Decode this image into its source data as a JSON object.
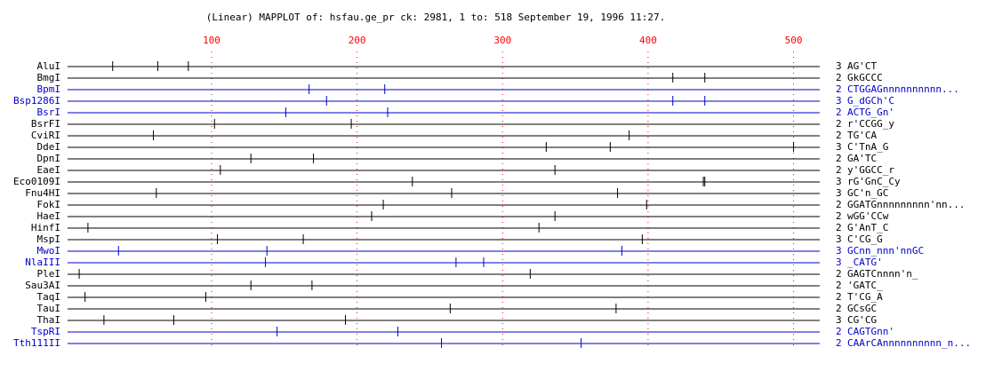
{
  "chart_data": {
    "type": "restriction-map",
    "title": "(Linear) MAPPLOT of: hsfau.ge_pr  ck: 2981, 1 to: 518  September 19, 1996 11:27.",
    "xlim": [
      1,
      518
    ],
    "xticks": [
      100,
      200,
      300,
      400,
      500
    ],
    "tick_color": "#ff0000",
    "series": [
      {
        "name": "AluI",
        "color": "#000000",
        "count": 3,
        "site": "AG'CT",
        "values": [
          32,
          63,
          84
        ]
      },
      {
        "name": "BmgI",
        "color": "#000000",
        "count": 2,
        "site": "GkGCCC",
        "values": [
          417,
          439
        ]
      },
      {
        "name": "BpmI",
        "color": "#0000cc",
        "count": 2,
        "site": "CTGGAGnnnnnnnnnn...",
        "values": [
          167,
          219
        ]
      },
      {
        "name": "Bsp1286I",
        "color": "#0000cc",
        "count": 3,
        "site": "G_dGCh'C",
        "values": [
          179,
          417,
          439
        ]
      },
      {
        "name": "BsrI",
        "color": "#0000cc",
        "count": 2,
        "site": "ACTG_Gn'",
        "values": [
          151,
          221
        ]
      },
      {
        "name": "BsrFI",
        "color": "#000000",
        "count": 2,
        "site": "r'CCGG_y",
        "values": [
          102,
          196
        ]
      },
      {
        "name": "CviRI",
        "color": "#000000",
        "count": 2,
        "site": "TG'CA",
        "values": [
          60,
          387
        ]
      },
      {
        "name": "DdeI",
        "color": "#000000",
        "count": 3,
        "site": "C'TnA_G",
        "values": [
          330,
          374,
          500
        ]
      },
      {
        "name": "DpnI",
        "color": "#000000",
        "count": 2,
        "site": "GA'TC",
        "values": [
          127,
          170
        ]
      },
      {
        "name": "EaeI",
        "color": "#000000",
        "count": 2,
        "site": "y'GGCC_r",
        "values": [
          106,
          336
        ]
      },
      {
        "name": "Eco0109I",
        "color": "#000000",
        "count": 3,
        "site": "rG'GnC_Cy",
        "values": [
          238,
          438,
          439
        ]
      },
      {
        "name": "Fnu4HI",
        "color": "#000000",
        "count": 3,
        "site": "GC'n_GC",
        "values": [
          62,
          265,
          379
        ]
      },
      {
        "name": "FokI",
        "color": "#000000",
        "count": 2,
        "site": "GGATGnnnnnnnnn'nn...",
        "values": [
          218,
          399
        ]
      },
      {
        "name": "HaeI",
        "color": "#000000",
        "count": 2,
        "site": "wGG'CCw",
        "values": [
          210,
          336
        ]
      },
      {
        "name": "HinfI",
        "color": "#000000",
        "count": 2,
        "site": "G'AnT_C",
        "values": [
          15,
          325
        ]
      },
      {
        "name": "MspI",
        "color": "#000000",
        "count": 3,
        "site": "C'CG_G",
        "values": [
          104,
          163,
          396
        ]
      },
      {
        "name": "MwoI",
        "color": "#0000cc",
        "count": 3,
        "site": "GCnn_nnn'nnGC",
        "values": [
          36,
          138,
          382
        ]
      },
      {
        "name": "NlaIII",
        "color": "#0000cc",
        "count": 3,
        "site": "_CATG'",
        "values": [
          137,
          268,
          287
        ]
      },
      {
        "name": "PleI",
        "color": "#000000",
        "count": 2,
        "site": "GAGTCnnnn'n_",
        "values": [
          9,
          319
        ]
      },
      {
        "name": "Sau3AI",
        "color": "#000000",
        "count": 2,
        "site": "'GATC_",
        "values": [
          127,
          169
        ]
      },
      {
        "name": "TaqI",
        "color": "#000000",
        "count": 2,
        "site": "T'CG_A",
        "values": [
          13,
          96
        ]
      },
      {
        "name": "TauI",
        "color": "#000000",
        "count": 2,
        "site": "GCsGC",
        "values": [
          264,
          378
        ]
      },
      {
        "name": "ThaI",
        "color": "#000000",
        "count": 3,
        "site": "CG'CG",
        "values": [
          26,
          74,
          192
        ]
      },
      {
        "name": "TspRI",
        "color": "#0000cc",
        "count": 2,
        "site": "CAGTGnn'",
        "values": [
          145,
          228
        ]
      },
      {
        "name": "Tth111II",
        "color": "#0000cc",
        "count": 2,
        "site": "CAArCAnnnnnnnnnn_n...",
        "values": [
          258,
          354
        ]
      }
    ]
  }
}
